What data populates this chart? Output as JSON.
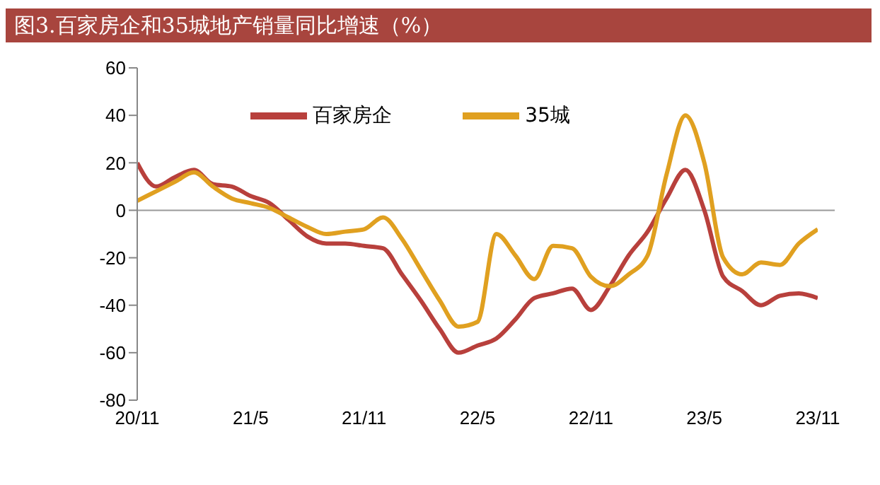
{
  "chart_data": {
    "type": "line",
    "title": "图3.百家房企和35城地产销量同比增速（%）",
    "categories": [
      "20/11",
      null,
      null,
      null,
      null,
      null,
      "21/5",
      null,
      null,
      null,
      null,
      null,
      "21/11",
      null,
      null,
      null,
      null,
      null,
      "22/5",
      null,
      null,
      null,
      null,
      null,
      "22/11",
      null,
      null,
      null,
      null,
      null,
      "23/5",
      null,
      null,
      null,
      null,
      null,
      "23/11"
    ],
    "series": [
      {
        "name": "百家房企",
        "color": "#b8403c",
        "values": [
          20,
          10,
          14,
          17,
          11,
          10,
          6,
          3,
          -4,
          -11,
          -14,
          -14,
          -15,
          -16,
          -27,
          -38,
          -50,
          -60,
          -57,
          -54,
          -46,
          -37,
          -35,
          -33,
          -42,
          -32,
          -19,
          -9,
          5,
          17,
          0,
          -28,
          -34,
          -40,
          -36,
          -35,
          -37
        ]
      },
      {
        "name": "35城",
        "color": "#e0a020",
        "values": [
          4,
          8,
          12,
          16,
          10,
          5,
          3,
          1,
          -3,
          -7,
          -10,
          -9,
          -8,
          -3,
          -12,
          -25,
          -38,
          -49,
          -47,
          -10,
          -19,
          -29,
          -15,
          -16,
          -28,
          -32,
          -27,
          -19,
          15,
          40,
          20,
          -20,
          -27,
          -22,
          -23,
          -14,
          -8
        ]
      }
    ],
    "ylim": [
      -80,
      60
    ],
    "yticks": [
      -80,
      -60,
      -40,
      -20,
      0,
      20,
      40,
      60
    ],
    "ref_lines": [
      {
        "axis": "y",
        "value": 0,
        "color": "#999999"
      }
    ],
    "legend": "top",
    "marker": "none",
    "line_style": "solid"
  }
}
